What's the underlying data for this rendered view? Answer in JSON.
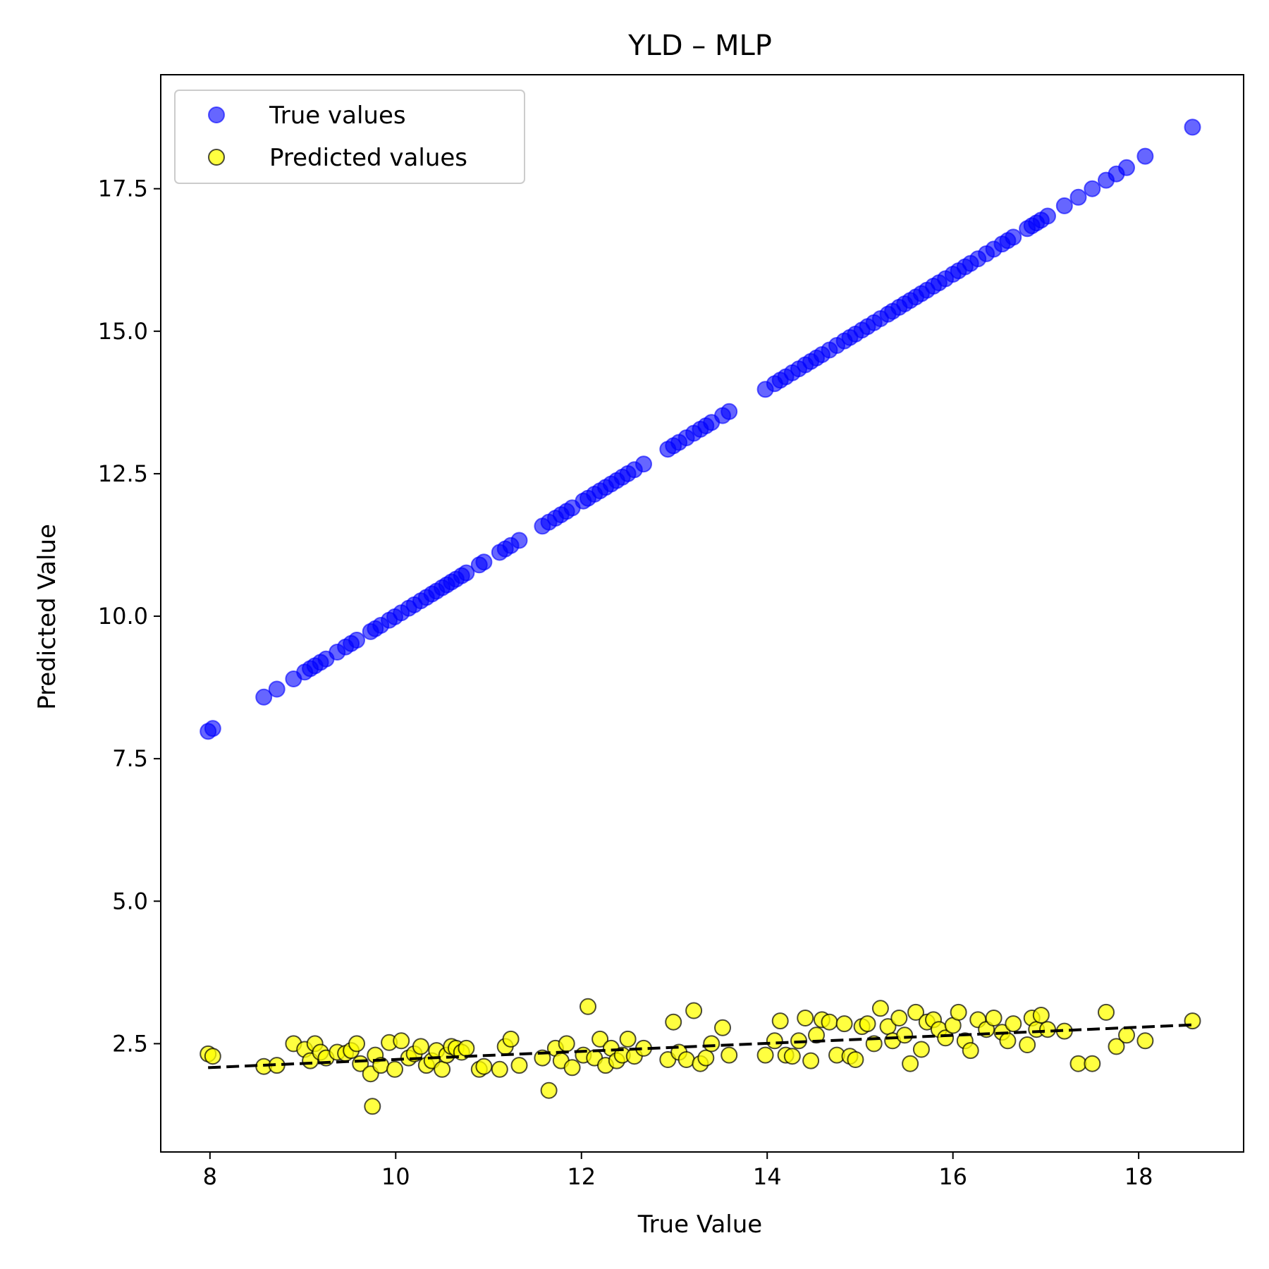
{
  "chart_data": {
    "type": "scatter",
    "title": "YLD – MLP",
    "xlabel": "True Value",
    "ylabel": "Predicted Value",
    "xlim": [
      7.47,
      19.13
    ],
    "ylim": [
      0.6,
      19.5
    ],
    "x_ticks": [
      8,
      10,
      12,
      14,
      16,
      18
    ],
    "x_tick_labels": [
      "8",
      "10",
      "12",
      "14",
      "16",
      "18"
    ],
    "y_ticks": [
      2.5,
      5.0,
      7.5,
      10.0,
      12.5,
      15.0,
      17.5
    ],
    "y_tick_labels": [
      "2.5",
      "5.0",
      "7.5",
      "10.0",
      "12.5",
      "15.0",
      "17.5"
    ],
    "grid": false,
    "legend_position": "top-left",
    "series": [
      {
        "name": "True values",
        "color": "#0000ff",
        "marker": "circle",
        "x": [
          7.98,
          8.03,
          8.58,
          8.72,
          8.9,
          9.02,
          9.08,
          9.13,
          9.19,
          9.25,
          9.37,
          9.46,
          9.52,
          9.58,
          9.73,
          9.78,
          9.84,
          9.93,
          9.99,
          10.06,
          10.14,
          10.2,
          10.27,
          10.33,
          10.39,
          10.44,
          10.5,
          10.55,
          10.6,
          10.65,
          10.71,
          10.76,
          10.9,
          10.95,
          11.12,
          11.18,
          11.24,
          11.33,
          11.58,
          11.65,
          11.72,
          11.78,
          11.84,
          11.9,
          12.02,
          12.07,
          12.14,
          12.2,
          12.26,
          12.32,
          12.38,
          12.44,
          12.5,
          12.57,
          12.67,
          12.93,
          12.99,
          13.05,
          13.13,
          13.21,
          13.28,
          13.34,
          13.4,
          13.52,
          13.59,
          13.98,
          14.08,
          14.14,
          14.2,
          14.27,
          14.34,
          14.41,
          14.47,
          14.53,
          14.59,
          14.67,
          14.75,
          14.83,
          14.89,
          14.95,
          15.02,
          15.08,
          15.15,
          15.22,
          15.3,
          15.35,
          15.42,
          15.48,
          15.54,
          15.6,
          15.66,
          15.72,
          15.79,
          15.85,
          15.92,
          16.0,
          16.06,
          16.13,
          16.19,
          16.27,
          16.36,
          16.44,
          16.53,
          16.59,
          16.65,
          16.8,
          16.85,
          16.9,
          16.95,
          17.02,
          17.2,
          17.35,
          17.5,
          17.65,
          17.76,
          17.87,
          18.07,
          18.58
        ],
        "y": [
          7.98,
          8.03,
          8.58,
          8.72,
          8.9,
          9.02,
          9.08,
          9.13,
          9.19,
          9.25,
          9.37,
          9.46,
          9.52,
          9.58,
          9.73,
          9.78,
          9.84,
          9.93,
          9.99,
          10.06,
          10.14,
          10.2,
          10.27,
          10.33,
          10.39,
          10.44,
          10.5,
          10.55,
          10.6,
          10.65,
          10.71,
          10.76,
          10.9,
          10.95,
          11.12,
          11.18,
          11.24,
          11.33,
          11.58,
          11.65,
          11.72,
          11.78,
          11.84,
          11.9,
          12.02,
          12.07,
          12.14,
          12.2,
          12.26,
          12.32,
          12.38,
          12.44,
          12.5,
          12.57,
          12.67,
          12.93,
          12.99,
          13.05,
          13.13,
          13.21,
          13.28,
          13.34,
          13.4,
          13.52,
          13.59,
          13.98,
          14.08,
          14.14,
          14.2,
          14.27,
          14.34,
          14.41,
          14.47,
          14.53,
          14.59,
          14.67,
          14.75,
          14.83,
          14.89,
          14.95,
          15.02,
          15.08,
          15.15,
          15.22,
          15.3,
          15.35,
          15.42,
          15.48,
          15.54,
          15.6,
          15.66,
          15.72,
          15.79,
          15.85,
          15.92,
          16.0,
          16.06,
          16.13,
          16.19,
          16.27,
          16.36,
          16.44,
          16.53,
          16.59,
          16.65,
          16.8,
          16.85,
          16.9,
          16.95,
          17.02,
          17.2,
          17.35,
          17.5,
          17.65,
          17.76,
          17.87,
          18.07,
          18.58
        ]
      },
      {
        "name": "Predicted values",
        "color": "#ffff00",
        "marker": "circle",
        "x": [
          7.98,
          8.03,
          8.58,
          8.72,
          8.9,
          9.02,
          9.08,
          9.13,
          9.19,
          9.25,
          9.37,
          9.46,
          9.52,
          9.58,
          9.62,
          9.73,
          9.75,
          9.78,
          9.84,
          9.93,
          9.99,
          10.06,
          10.14,
          10.2,
          10.27,
          10.33,
          10.39,
          10.44,
          10.5,
          10.55,
          10.6,
          10.65,
          10.71,
          10.76,
          10.9,
          10.95,
          11.12,
          11.18,
          11.24,
          11.33,
          11.58,
          11.65,
          11.72,
          11.78,
          11.84,
          11.9,
          12.02,
          12.07,
          12.14,
          12.2,
          12.26,
          12.32,
          12.38,
          12.44,
          12.5,
          12.57,
          12.67,
          12.93,
          12.99,
          13.05,
          13.13,
          13.21,
          13.28,
          13.34,
          13.4,
          13.52,
          13.59,
          13.98,
          14.08,
          14.14,
          14.2,
          14.27,
          14.34,
          14.41,
          14.47,
          14.53,
          14.59,
          14.67,
          14.75,
          14.83,
          14.89,
          14.95,
          15.02,
          15.08,
          15.15,
          15.22,
          15.3,
          15.35,
          15.42,
          15.48,
          15.54,
          15.6,
          15.66,
          15.72,
          15.79,
          15.85,
          15.92,
          16.0,
          16.06,
          16.13,
          16.19,
          16.27,
          16.36,
          16.44,
          16.53,
          16.59,
          16.65,
          16.8,
          16.85,
          16.9,
          16.95,
          17.02,
          17.2,
          17.35,
          17.5,
          17.65,
          17.76,
          17.87,
          18.07,
          18.58
        ],
        "y": [
          2.32,
          2.28,
          2.1,
          2.12,
          2.5,
          2.4,
          2.2,
          2.5,
          2.35,
          2.25,
          2.35,
          2.33,
          2.38,
          2.5,
          2.15,
          1.97,
          1.4,
          2.3,
          2.12,
          2.52,
          2.05,
          2.55,
          2.25,
          2.32,
          2.45,
          2.12,
          2.2,
          2.38,
          2.05,
          2.3,
          2.45,
          2.42,
          2.35,
          2.42,
          2.05,
          2.1,
          2.05,
          2.45,
          2.58,
          2.12,
          2.25,
          1.68,
          2.42,
          2.2,
          2.5,
          2.08,
          2.3,
          3.15,
          2.25,
          2.58,
          2.12,
          2.42,
          2.2,
          2.3,
          2.58,
          2.28,
          2.42,
          2.22,
          2.88,
          2.35,
          2.22,
          3.08,
          2.15,
          2.25,
          2.5,
          2.78,
          2.3,
          2.3,
          2.55,
          2.9,
          2.3,
          2.28,
          2.55,
          2.95,
          2.2,
          2.65,
          2.92,
          2.88,
          2.3,
          2.85,
          2.28,
          2.22,
          2.8,
          2.85,
          2.5,
          3.12,
          2.8,
          2.55,
          2.95,
          2.65,
          2.15,
          3.05,
          2.4,
          2.88,
          2.92,
          2.75,
          2.6,
          2.82,
          3.05,
          2.55,
          2.38,
          2.92,
          2.75,
          2.95,
          2.7,
          2.55,
          2.85,
          2.48,
          2.95,
          2.75,
          3.0,
          2.75,
          2.72,
          2.15,
          2.15,
          3.05,
          2.45,
          2.65,
          2.55,
          2.9
        ]
      }
    ],
    "trend_line": {
      "style": "dashed",
      "color": "#000000",
      "x": [
        7.98,
        18.58
      ],
      "y": [
        2.08,
        2.83
      ]
    }
  }
}
